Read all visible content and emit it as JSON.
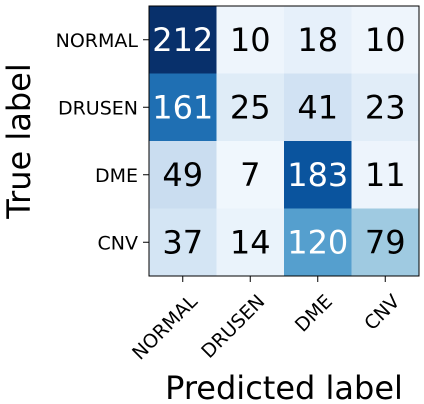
{
  "chart_data": {
    "type": "heatmap",
    "xlabel": "Predicted label",
    "ylabel": "True label",
    "x_categories": [
      "NORMAL",
      "DRUSEN",
      "DME",
      "CNV"
    ],
    "y_categories": [
      "NORMAL",
      "DRUSEN",
      "DME",
      "CNV"
    ],
    "values": [
      [
        212,
        10,
        18,
        10
      ],
      [
        161,
        25,
        41,
        23
      ],
      [
        49,
        7,
        183,
        11
      ],
      [
        37,
        14,
        120,
        79
      ]
    ],
    "colormap": "Blues",
    "value_range": [
      0,
      212
    ],
    "colors": {
      "text_dark": "#000000",
      "text_light": "#ffffff",
      "frame": "#000000"
    }
  }
}
